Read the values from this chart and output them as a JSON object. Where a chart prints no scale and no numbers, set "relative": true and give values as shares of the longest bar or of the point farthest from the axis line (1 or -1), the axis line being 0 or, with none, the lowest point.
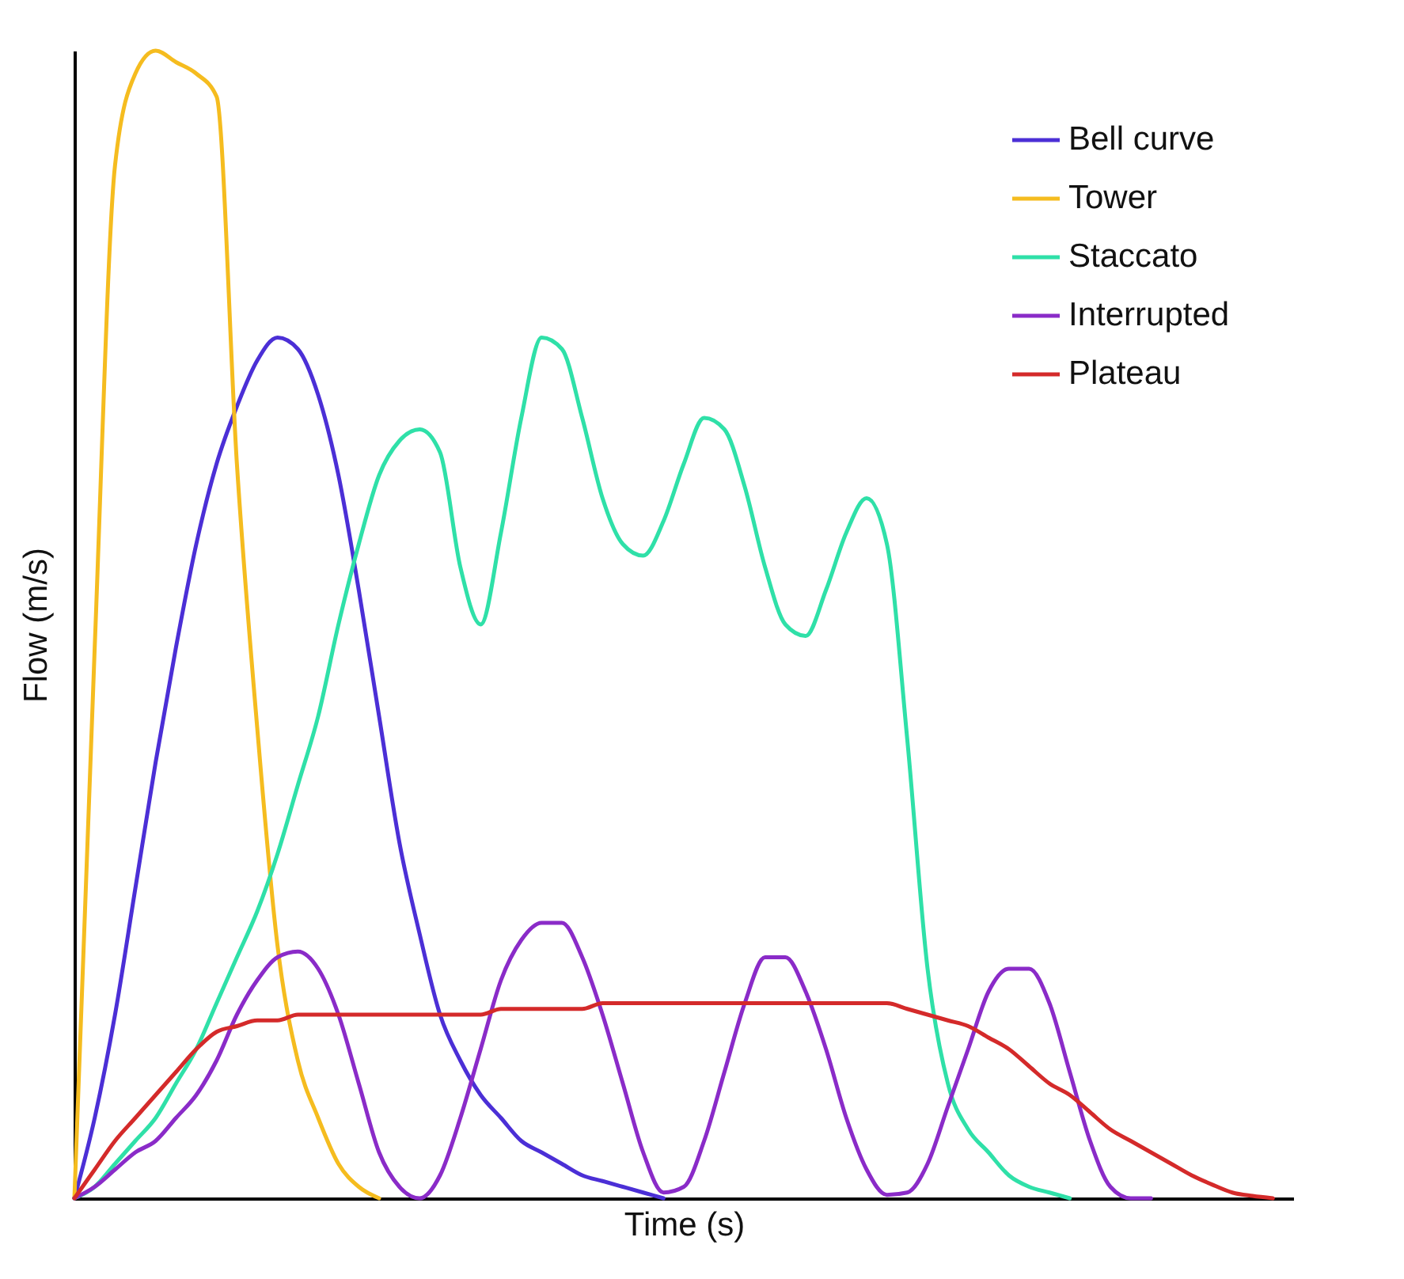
{
  "chart_data": {
    "type": "line",
    "relative": true,
    "xlabel": "Time (s)",
    "ylabel": "Flow (m/s)",
    "legend": "top right",
    "line_style": "solid",
    "categories": [
      null,
      null,
      null,
      null,
      null,
      null,
      null,
      null,
      null,
      null,
      null,
      null,
      null,
      null,
      null,
      null,
      null,
      null,
      null,
      null,
      null,
      null,
      null,
      null,
      null,
      null,
      null,
      null,
      null,
      null,
      null,
      null,
      null,
      null,
      null,
      null,
      null,
      null,
      null,
      null,
      null,
      null,
      null,
      null,
      null,
      null,
      null,
      null,
      null,
      null,
      null,
      null,
      null,
      null,
      null,
      null,
      null,
      null,
      null,
      null,
      null
    ],
    "series": [
      {
        "name": "Bell curve",
        "color": "#4b2fd6",
        "values": [
          0,
          0.07,
          0.16,
          0.27,
          0.38,
          0.48,
          0.57,
          0.64,
          0.69,
          0.73,
          0.75,
          0.74,
          0.7,
          0.63,
          0.53,
          0.42,
          0.31,
          0.23,
          0.16,
          0.12,
          0.09,
          0.07,
          0.05,
          0.04,
          0.03,
          0.02,
          0.015,
          0.01,
          0.005,
          0,
          null,
          null,
          null,
          null,
          null,
          null,
          null,
          null,
          null,
          null,
          null,
          null,
          null,
          null,
          null,
          null,
          null,
          null,
          null,
          null,
          null,
          null,
          null,
          null,
          null,
          null,
          null,
          null,
          null,
          null,
          null
        ]
      },
      {
        "name": "Tower",
        "color": "#f5bc1f",
        "values": [
          0,
          0.48,
          0.9,
          0.98,
          1,
          0.99,
          0.98,
          0.96,
          0.64,
          0.41,
          0.22,
          0.12,
          0.07,
          0.03,
          0.01,
          0,
          null,
          null,
          null,
          null,
          null,
          null,
          null,
          null,
          null,
          null,
          null,
          null,
          null,
          null,
          null,
          null,
          null,
          null,
          null,
          null,
          null,
          null,
          null,
          null,
          null,
          null,
          null,
          null,
          null,
          null,
          null,
          null,
          null,
          null,
          null,
          null,
          null,
          null,
          null,
          null,
          null,
          null,
          null,
          null,
          null
        ]
      },
      {
        "name": "Staccato",
        "color": "#2fe0a8",
        "values": [
          0,
          0.01,
          0.03,
          0.05,
          0.07,
          0.1,
          0.13,
          0.17,
          0.21,
          0.25,
          0.3,
          0.36,
          0.42,
          0.5,
          0.57,
          0.63,
          0.66,
          0.67,
          0.65,
          0.55,
          0.5,
          0.58,
          0.68,
          0.75,
          0.74,
          0.68,
          0.61,
          0.57,
          0.56,
          0.59,
          0.64,
          0.68,
          0.67,
          0.62,
          0.55,
          0.5,
          0.49,
          0.53,
          0.58,
          0.61,
          0.57,
          0.4,
          0.2,
          0.1,
          0.06,
          0.04,
          0.02,
          0.01,
          0.005,
          0,
          null,
          null,
          null,
          null,
          null,
          null,
          null,
          null,
          null,
          null,
          null
        ]
      },
      {
        "name": "Interrupted",
        "color": "#8a2bc8",
        "values": [
          0,
          0.01,
          0.025,
          0.04,
          0.05,
          0.07,
          0.09,
          0.12,
          0.16,
          0.19,
          0.21,
          0.215,
          0.2,
          0.16,
          0.1,
          0.04,
          0.01,
          0,
          0.02,
          0.07,
          0.13,
          0.19,
          0.225,
          0.24,
          0.24,
          0.21,
          0.16,
          0.1,
          0.04,
          0.005,
          0.01,
          0.05,
          0.11,
          0.17,
          0.21,
          0.21,
          0.18,
          0.13,
          0.07,
          0.025,
          0.003,
          0.005,
          0.03,
          0.08,
          0.13,
          0.18,
          0.2,
          0.2,
          0.17,
          0.11,
          0.05,
          0.01,
          0,
          0,
          null,
          null,
          null,
          null,
          null,
          null,
          null
        ]
      },
      {
        "name": "Plateau",
        "color": "#d42a2a",
        "values": [
          0,
          0.025,
          0.05,
          0.07,
          0.09,
          0.11,
          0.13,
          0.145,
          0.15,
          0.155,
          0.155,
          0.16,
          0.16,
          0.16,
          0.16,
          0.16,
          0.16,
          0.16,
          0.16,
          0.16,
          0.16,
          0.165,
          0.165,
          0.165,
          0.165,
          0.165,
          0.17,
          0.17,
          0.17,
          0.17,
          0.17,
          0.17,
          0.17,
          0.17,
          0.17,
          0.17,
          0.17,
          0.17,
          0.17,
          0.17,
          0.17,
          0.165,
          0.16,
          0.155,
          0.15,
          0.14,
          0.13,
          0.115,
          0.1,
          0.09,
          0.075,
          0.06,
          0.05,
          0.04,
          0.03,
          0.02,
          0.012,
          0.005,
          0.002,
          0,
          null
        ]
      }
    ]
  }
}
